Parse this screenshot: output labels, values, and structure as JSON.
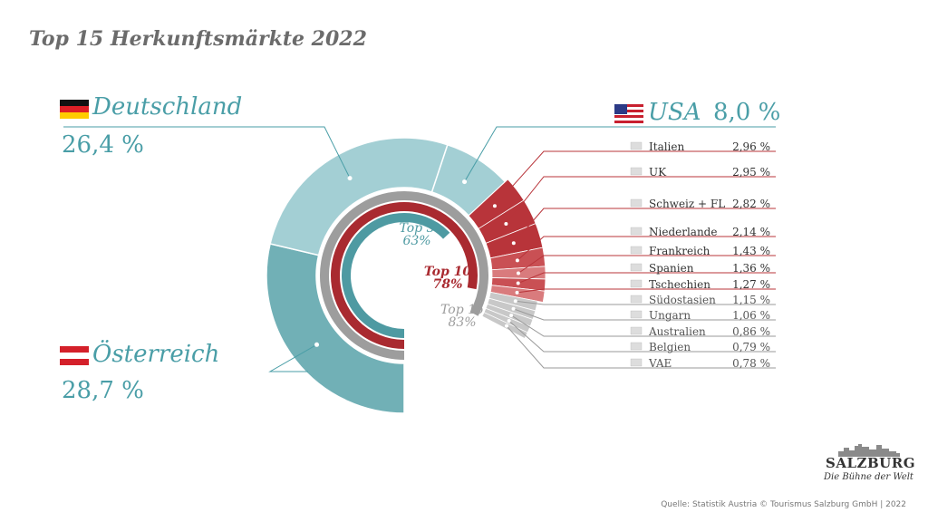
{
  "title": "Top 15 Herkunftsmärkte 2022",
  "chart_data": {
    "type": "pie",
    "title": "Top 15 Herkunftsmärkte 2022",
    "slices": [
      {
        "label": "Österreich",
        "value_text": "28,7 %",
        "value": 28.7,
        "flag": "at-flag-icon"
      },
      {
        "label": "Deutschland",
        "value_text": "26,4 %",
        "value": 26.4,
        "flag": "de-flag-icon"
      },
      {
        "label": "USA",
        "value_text": "8,0 %",
        "value": 8.0,
        "flag": "us-flag-icon"
      },
      {
        "label": "Italien",
        "value_text": "2,96 %",
        "value": 2.96,
        "flag": "it-flag-icon"
      },
      {
        "label": "UK",
        "value_text": "2,95 %",
        "value": 2.95,
        "flag": "uk-flag-icon"
      },
      {
        "label": "Schweiz + FL",
        "value_text": "2,82 %",
        "value": 2.82,
        "flag": "ch-flag-icon"
      },
      {
        "label": "Niederlande",
        "value_text": "2,14 %",
        "value": 2.14,
        "flag": "nl-flag-icon"
      },
      {
        "label": "Frankreich",
        "value_text": "1,43 %",
        "value": 1.43,
        "flag": "fr-flag-icon"
      },
      {
        "label": "Spanien",
        "value_text": "1,36 %",
        "value": 1.36,
        "flag": "es-flag-icon"
      },
      {
        "label": "Tschechien",
        "value_text": "1,27 %",
        "value": 1.27,
        "flag": "cz-flag-icon"
      },
      {
        "label": "Südostasien",
        "value_text": "1,15 %",
        "value": 1.15,
        "flag": "asean-flag-icon"
      },
      {
        "label": "Ungarn",
        "value_text": "1,06 %",
        "value": 1.06,
        "flag": "hu-flag-icon"
      },
      {
        "label": "Australien",
        "value_text": "0,86 %",
        "value": 0.86,
        "flag": "au-flag-icon"
      },
      {
        "label": "Belgien",
        "value_text": "0,79 %",
        "value": 0.79,
        "flag": "be-flag-icon"
      },
      {
        "label": "VAE",
        "value_text": "0,78 %",
        "value": 0.78,
        "flag": "ae-flag-icon"
      }
    ],
    "rings": [
      {
        "label": "Top 3",
        "value_text": "63%",
        "value": 63
      },
      {
        "label": "Top 10",
        "value_text": "78%",
        "value": 78
      },
      {
        "label": "Top 15",
        "value_text": "83%",
        "value": 83
      }
    ]
  },
  "colors": {
    "big_dark": "#71b0b6",
    "big_light": "#a3cfd4",
    "red_dark": "#b8343a",
    "red_mid": "#c95054",
    "red_light": "#d97b7d",
    "grey": "#c8c8c8",
    "teal_text": "#4a9ea7",
    "red_text": "#a5262c",
    "grey_text": "#888888",
    "ring_top3": "#4e9aa2",
    "ring_top10": "#a92a30",
    "ring_top15": "#9d9d9d"
  },
  "source": "Quelle: Statistik Austria © Tourismus Salzburg GmbH | 2022",
  "logo": {
    "word": "SALZBURG",
    "tagline": "Die Bühne der Welt"
  }
}
